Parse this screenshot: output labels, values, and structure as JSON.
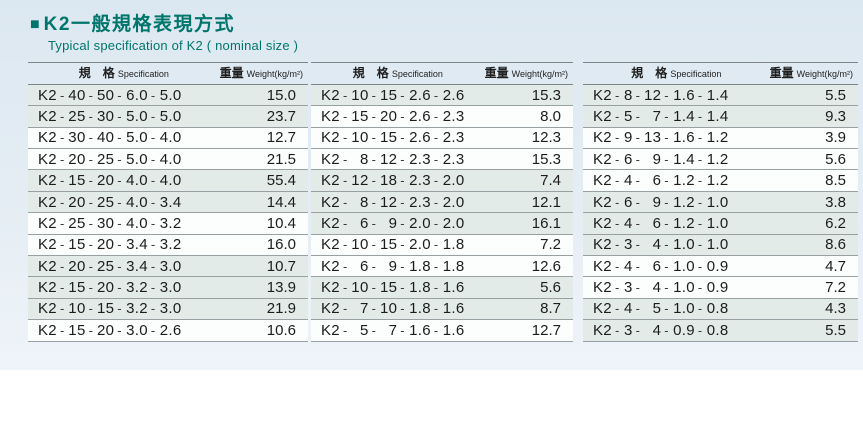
{
  "header": {
    "bullet": "■",
    "title_zh": "K2一般規格表現方式",
    "subtitle_en": "Typical specification of K2 ( nominal size )"
  },
  "columns": {
    "spec_zh": "規　格",
    "spec_en": "Specification",
    "weight_zh": "重量",
    "weight_en": "Weight(kg/m²)"
  },
  "separator": "-",
  "tables": [
    {
      "id": "table-1",
      "rows": [
        {
          "spec": [
            "K2",
            "40",
            "50",
            "6.0",
            "5.0"
          ],
          "weight": "15.0",
          "shaded": true
        },
        {
          "spec": [
            "K2",
            "25",
            "30",
            "5.0",
            "5.0"
          ],
          "weight": "23.7",
          "shaded": true
        },
        {
          "spec": [
            "K2",
            "30",
            "40",
            "5.0",
            "4.0"
          ],
          "weight": "12.7",
          "shaded": false
        },
        {
          "spec": [
            "K2",
            "20",
            "25",
            "5.0",
            "4.0"
          ],
          "weight": "21.5",
          "shaded": false
        },
        {
          "spec": [
            "K2",
            "15",
            "20",
            "4.0",
            "4.0"
          ],
          "weight": "55.4",
          "shaded": true
        },
        {
          "spec": [
            "K2",
            "20",
            "25",
            "4.0",
            "3.4"
          ],
          "weight": "14.4",
          "shaded": true
        },
        {
          "spec": [
            "K2",
            "25",
            "30",
            "4.0",
            "3.2"
          ],
          "weight": "10.4",
          "shaded": false
        },
        {
          "spec": [
            "K2",
            "15",
            "20",
            "3.4",
            "3.2"
          ],
          "weight": "16.0",
          "shaded": false
        },
        {
          "spec": [
            "K2",
            "20",
            "25",
            "3.4",
            "3.0"
          ],
          "weight": "10.7",
          "shaded": true
        },
        {
          "spec": [
            "K2",
            "15",
            "20",
            "3.2",
            "3.0"
          ],
          "weight": "13.9",
          "shaded": true
        },
        {
          "spec": [
            "K2",
            "10",
            "15",
            "3.2",
            "3.0"
          ],
          "weight": "21.9",
          "shaded": true
        },
        {
          "spec": [
            "K2",
            "15",
            "20",
            "3.0",
            "2.6"
          ],
          "weight": "10.6",
          "shaded": false
        }
      ]
    },
    {
      "id": "table-2",
      "rows": [
        {
          "spec": [
            "K2",
            "10",
            "15",
            "2.6",
            "2.6"
          ],
          "weight": "15.3",
          "shaded": true
        },
        {
          "spec": [
            "K2",
            "15",
            "20",
            "2.6",
            "2.3"
          ],
          "weight": "8.0",
          "shaded": false
        },
        {
          "spec": [
            "K2",
            "10",
            "15",
            "2.6",
            "2.3"
          ],
          "weight": "12.3",
          "shaded": false
        },
        {
          "spec": [
            "K2",
            "8",
            "12",
            "2.3",
            "2.3"
          ],
          "weight": "15.3",
          "shaded": false
        },
        {
          "spec": [
            "K2",
            "12",
            "18",
            "2.3",
            "2.0"
          ],
          "weight": "7.4",
          "shaded": true
        },
        {
          "spec": [
            "K2",
            "8",
            "12",
            "2.3",
            "2.0"
          ],
          "weight": "12.1",
          "shaded": true
        },
        {
          "spec": [
            "K2",
            "6",
            "9",
            "2.0",
            "2.0"
          ],
          "weight": "16.1",
          "shaded": true
        },
        {
          "spec": [
            "K2",
            "10",
            "15",
            "2.0",
            "1.8"
          ],
          "weight": "7.2",
          "shaded": false
        },
        {
          "spec": [
            "K2",
            "6",
            "9",
            "1.8",
            "1.8"
          ],
          "weight": "12.6",
          "shaded": false
        },
        {
          "spec": [
            "K2",
            "10",
            "15",
            "1.8",
            "1.6"
          ],
          "weight": "5.6",
          "shaded": true
        },
        {
          "spec": [
            "K2",
            "7",
            "10",
            "1.8",
            "1.6"
          ],
          "weight": "8.7",
          "shaded": true
        },
        {
          "spec": [
            "K2",
            "5",
            "7",
            "1.6",
            "1.6"
          ],
          "weight": "12.7",
          "shaded": false
        }
      ]
    },
    {
      "id": "table-3",
      "rows": [
        {
          "spec": [
            "K2",
            "8",
            "12",
            "1.6",
            "1.4"
          ],
          "weight": "5.5",
          "shaded": true
        },
        {
          "spec": [
            "K2",
            "5",
            "7",
            "1.4",
            "1.4"
          ],
          "weight": "9.3",
          "shaded": true
        },
        {
          "spec": [
            "K2",
            "9",
            "13",
            "1.6",
            "1.2"
          ],
          "weight": "3.9",
          "shaded": false
        },
        {
          "spec": [
            "K2",
            "6",
            "9",
            "1.4",
            "1.2"
          ],
          "weight": "5.6",
          "shaded": false
        },
        {
          "spec": [
            "K2",
            "4",
            "6",
            "1.2",
            "1.2"
          ],
          "weight": "8.5",
          "shaded": false
        },
        {
          "spec": [
            "K2",
            "6",
            "9",
            "1.2",
            "1.0"
          ],
          "weight": "3.8",
          "shaded": true
        },
        {
          "spec": [
            "K2",
            "4",
            "6",
            "1.2",
            "1.0"
          ],
          "weight": "6.2",
          "shaded": true
        },
        {
          "spec": [
            "K2",
            "3",
            "4",
            "1.0",
            "1.0"
          ],
          "weight": "8.6",
          "shaded": true
        },
        {
          "spec": [
            "K2",
            "4",
            "6",
            "1.0",
            "0.9"
          ],
          "weight": "4.7",
          "shaded": false
        },
        {
          "spec": [
            "K2",
            "3",
            "4",
            "1.0",
            "0.9"
          ],
          "weight": "7.2",
          "shaded": false
        },
        {
          "spec": [
            "K2",
            "4",
            "5",
            "1.0",
            "0.8"
          ],
          "weight": "4.3",
          "shaded": true
        },
        {
          "spec": [
            "K2",
            "3",
            "4",
            "0.9",
            "0.8"
          ],
          "weight": "5.5",
          "shaded": true
        }
      ]
    }
  ],
  "colors": {
    "accent_teal": "#00756b",
    "row_shade": "#e3ebe9",
    "row_plain": "#fcfdfd",
    "grid_line": "#99a0a3",
    "text": "#1c1c1c",
    "panel_top": "#dce8f1",
    "panel_bottom": "#eef4f9"
  }
}
